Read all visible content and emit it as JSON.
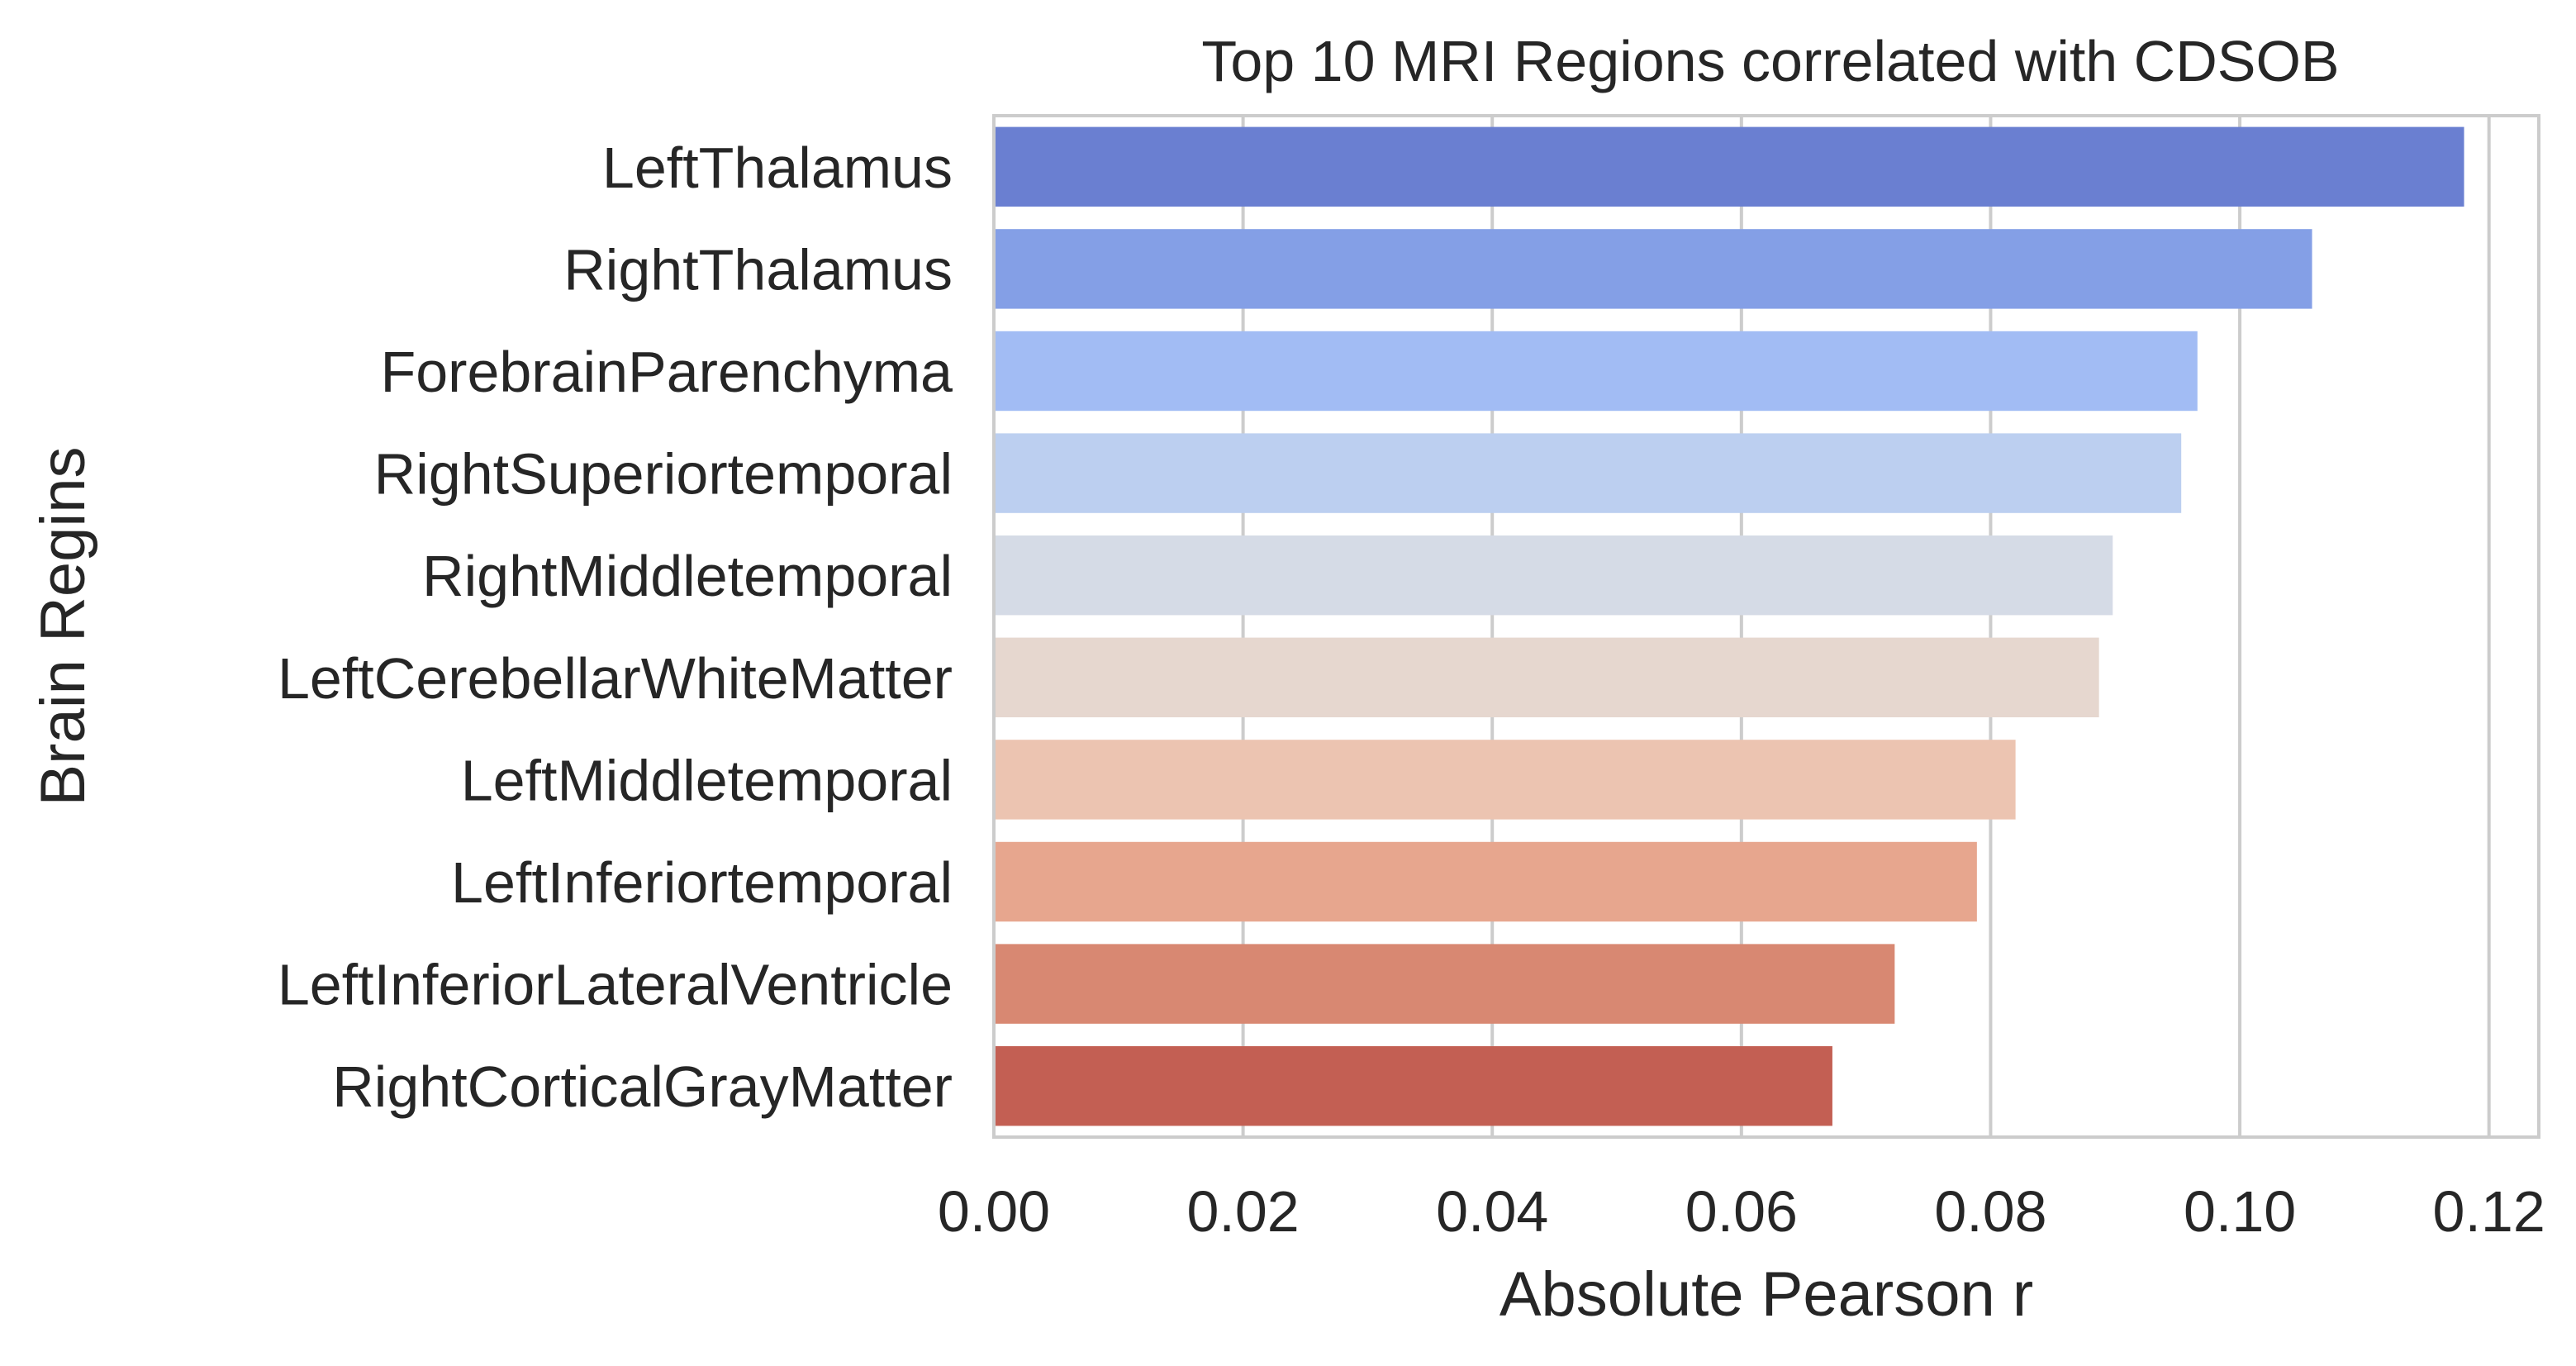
{
  "chart_data": {
    "type": "bar",
    "orientation": "horizontal",
    "title": "Top 10 MRI Regions correlated with CDSOB",
    "xlabel": "Absolute Pearson r",
    "ylabel": "Brain Regins",
    "xlim": [
      0.0,
      0.124
    ],
    "xticks": [
      "0.00",
      "0.02",
      "0.04",
      "0.06",
      "0.08",
      "0.10",
      "0.12"
    ],
    "xtick_values": [
      0.0,
      0.02,
      0.04,
      0.06,
      0.08,
      0.1,
      0.12
    ],
    "grid": true,
    "categories": [
      "LeftThalamus",
      "RightThalamus",
      "ForebrainParenchyma",
      "RightSuperiortemporal",
      "RightMiddletemporal",
      "LeftCerebellarWhiteMatter",
      "LeftMiddletemporal",
      "LeftInferiortemporal",
      "LeftInferiorLateralVentricle",
      "RightCorticalGrayMatter"
    ],
    "values": [
      0.118,
      0.1058,
      0.0966,
      0.0953,
      0.0898,
      0.0887,
      0.082,
      0.0789,
      0.0723,
      0.0673
    ],
    "colors": [
      "#6a7fd1",
      "#849fe6",
      "#a2bcf4",
      "#bccff0",
      "#d5dbe6",
      "#e6d7cf",
      "#ecc4b1",
      "#e7a68e",
      "#d88872",
      "#c35f53"
    ],
    "palette": "coolwarm",
    "grid_color": "#cccccc",
    "spine_color": "#cccccc"
  }
}
